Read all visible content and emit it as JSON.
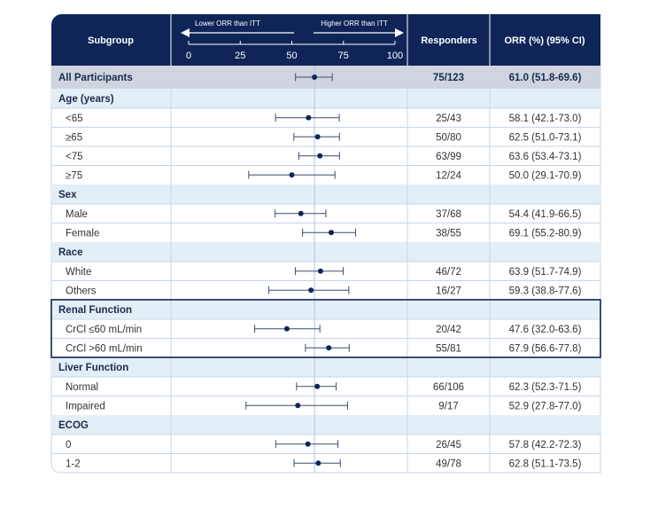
{
  "header": {
    "subgroup": "Subgroup",
    "responders": "Responders",
    "orr": "ORR (%) (95% CI)",
    "lower_label": "Lower ORR than ITT",
    "higher_label": "Higher ORR than ITT"
  },
  "colors": {
    "navy": "#0f2557",
    "highlight_row": "#cfd4e0",
    "section_row": "#e4eef7",
    "grid_line": "#c9d6e6",
    "reference_line": "#a9c8e8",
    "marker": "#0f2557"
  },
  "highlight_group": "Renal Function",
  "chart_data": {
    "type": "forest",
    "xlim": [
      0,
      100
    ],
    "xticks": [
      0,
      25,
      50,
      75,
      100
    ],
    "reference_value": 61.0,
    "rows": [
      {
        "kind": "all",
        "label": "All Participants",
        "responders": "75/123",
        "ci_text": "61.0 (51.8-69.6)",
        "est": 61.0,
        "lo": 51.8,
        "hi": 69.6
      },
      {
        "kind": "section",
        "label": "Age (years)"
      },
      {
        "kind": "row",
        "label": "<65",
        "responders": "25/43",
        "ci_text": "58.1 (42.1-73.0)",
        "est": 58.1,
        "lo": 42.1,
        "hi": 73.0
      },
      {
        "kind": "row",
        "label": "≥65",
        "responders": "50/80",
        "ci_text": "62.5 (51.0-73.1)",
        "est": 62.5,
        "lo": 51.0,
        "hi": 73.1
      },
      {
        "kind": "row",
        "label": "<75",
        "responders": "63/99",
        "ci_text": "63.6 (53.4-73.1)",
        "est": 63.6,
        "lo": 53.4,
        "hi": 73.1
      },
      {
        "kind": "row",
        "label": "≥75",
        "responders": "12/24",
        "ci_text": "50.0 (29.1-70.9)",
        "est": 50.0,
        "lo": 29.1,
        "hi": 70.9
      },
      {
        "kind": "section",
        "label": "Sex"
      },
      {
        "kind": "row",
        "label": "Male",
        "responders": "37/68",
        "ci_text": "54.4 (41.9-66.5)",
        "est": 54.4,
        "lo": 41.9,
        "hi": 66.5
      },
      {
        "kind": "row",
        "label": "Female",
        "responders": "38/55",
        "ci_text": "69.1 (55.2-80.9)",
        "est": 69.1,
        "lo": 55.2,
        "hi": 80.9
      },
      {
        "kind": "section",
        "label": "Race"
      },
      {
        "kind": "row",
        "label": "White",
        "responders": "46/72",
        "ci_text": "63.9 (51.7-74.9)",
        "est": 63.9,
        "lo": 51.7,
        "hi": 74.9
      },
      {
        "kind": "row",
        "label": "Others",
        "responders": "16/27",
        "ci_text": "59.3 (38.8-77.6)",
        "est": 59.3,
        "lo": 38.8,
        "hi": 77.6
      },
      {
        "kind": "section",
        "label": "Renal Function"
      },
      {
        "kind": "row",
        "label": "CrCl ≤60 mL/min",
        "responders": "20/42",
        "ci_text": "47.6 (32.0-63.6)",
        "est": 47.6,
        "lo": 32.0,
        "hi": 63.6
      },
      {
        "kind": "row",
        "label": "CrCl >60 mL/min",
        "responders": "55/81",
        "ci_text": "67.9 (56.6-77.8)",
        "est": 67.9,
        "lo": 56.6,
        "hi": 77.8
      },
      {
        "kind": "section",
        "label": "Liver Function"
      },
      {
        "kind": "row",
        "label": "Normal",
        "responders": "66/106",
        "ci_text": "62.3 (52.3-71.5)",
        "est": 62.3,
        "lo": 52.3,
        "hi": 71.5
      },
      {
        "kind": "row",
        "label": "Impaired",
        "responders": "9/17",
        "ci_text": "52.9 (27.8-77.0)",
        "est": 52.9,
        "lo": 27.8,
        "hi": 77.0
      },
      {
        "kind": "section",
        "label": "ECOG"
      },
      {
        "kind": "row",
        "label": "0",
        "responders": "26/45",
        "ci_text": "57.8 (42.2-72.3)",
        "est": 57.8,
        "lo": 42.2,
        "hi": 72.3
      },
      {
        "kind": "row",
        "label": "1-2",
        "responders": "49/78",
        "ci_text": "62.8 (51.1-73.5)",
        "est": 62.8,
        "lo": 51.1,
        "hi": 73.5
      }
    ]
  }
}
